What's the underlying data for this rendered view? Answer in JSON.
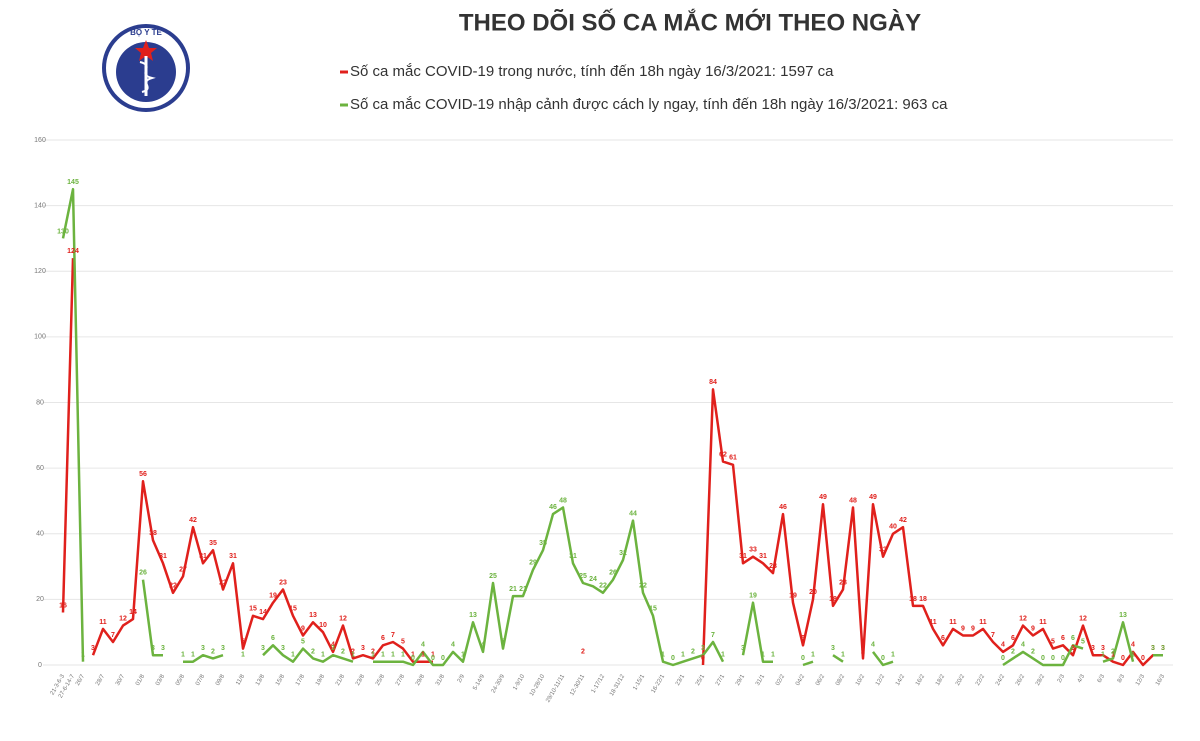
{
  "logo_text": "BỘ Y TẾ",
  "chart_data": {
    "type": "line",
    "title": "THEO DÕI SỐ CA MẮC MỚI THEO NGÀY",
    "ylim": [
      0,
      160
    ],
    "yticks": [
      0,
      20,
      40,
      60,
      80,
      100,
      120,
      140,
      160
    ],
    "grid": true,
    "categories": [
      "21-3-6-3",
      "27-6-14-7",
      "26/7",
      null,
      "28/7",
      null,
      "30/7",
      null,
      "01/8",
      null,
      "03/8",
      null,
      "05/8",
      null,
      "07/8",
      null,
      "09/8",
      null,
      "11/8",
      null,
      "13/8",
      null,
      "15/8",
      null,
      "17/8",
      null,
      "19/8",
      null,
      "21/8",
      null,
      "23/8",
      null,
      "25/8",
      null,
      "27/8",
      null,
      "29/8",
      null,
      "31/8",
      null,
      "2/9",
      null,
      "5-14/9",
      null,
      "24-30/9",
      null,
      "1-9/10",
      null,
      "10-28/10",
      null,
      "29/10-11/11",
      null,
      "12-30/11",
      null,
      "1-17/12",
      null,
      "18-31/12",
      null,
      "1-15/1",
      null,
      "16-22/1",
      null,
      "23/1",
      null,
      "25/1",
      null,
      "27/1",
      null,
      "29/1",
      null,
      "31/1",
      null,
      "02/2",
      null,
      "04/2",
      null,
      "06/2",
      null,
      "08/2",
      null,
      "10/2",
      null,
      "12/2",
      null,
      "14/2",
      null,
      "16/2",
      null,
      "18/2",
      null,
      "20/2",
      null,
      "22/2",
      null,
      "24/2",
      null,
      "26/2",
      null,
      "28/2",
      null,
      "2/3",
      null,
      "4/3",
      null,
      "6/3",
      null,
      "8/3",
      null,
      "12/3",
      null,
      "16/3"
    ],
    "series": [
      {
        "name": "Số ca mắc COVID-19 trong nước, tính đến 18h ngày 16/3/2021: 1597 ca",
        "color": "#e0201c",
        "values": [
          16,
          124,
          null,
          3,
          11,
          7,
          12,
          14,
          56,
          38,
          31,
          22,
          27,
          42,
          31,
          35,
          23,
          31,
          5,
          15,
          14,
          19,
          23,
          15,
          9,
          13,
          10,
          4,
          12,
          2,
          3,
          2,
          6,
          7,
          5,
          1,
          1,
          1,
          null,
          null,
          null,
          null,
          null,
          null,
          null,
          null,
          null,
          null,
          null,
          null,
          null,
          null,
          2,
          null,
          null,
          null,
          null,
          null,
          null,
          null,
          null,
          null,
          null,
          null,
          0,
          84,
          62,
          61,
          31,
          33,
          31,
          28,
          46,
          19,
          6,
          20,
          49,
          18,
          23,
          48,
          2,
          49,
          33,
          40,
          42,
          18,
          18,
          11,
          6,
          11,
          9,
          9,
          11,
          7,
          4,
          6,
          12,
          9,
          11,
          5,
          6,
          3,
          12,
          3,
          3,
          1,
          0,
          4,
          0,
          3,
          3
        ]
      },
      {
        "name": "Số ca mắc COVID-19 nhập cảnh được cách ly ngay, tính đến 18h ngày 16/3/2021: 963 ca",
        "color": "#6cb33f",
        "values": [
          130,
          145,
          1,
          null,
          null,
          null,
          null,
          null,
          26,
          3,
          3,
          null,
          1,
          1,
          3,
          2,
          3,
          null,
          1,
          null,
          3,
          6,
          3,
          1,
          5,
          2,
          1,
          3,
          2,
          1,
          null,
          1,
          1,
          1,
          1,
          0,
          4,
          0,
          0,
          4,
          1,
          13,
          4,
          25,
          5,
          21,
          21,
          29,
          35,
          46,
          48,
          31,
          25,
          24,
          22,
          26,
          32,
          44,
          22,
          15,
          1,
          0,
          1,
          2,
          3,
          7,
          1,
          null,
          3,
          19,
          1,
          1,
          null,
          null,
          0,
          1,
          null,
          3,
          1,
          null,
          null,
          4,
          0,
          1,
          null,
          null,
          null,
          null,
          null,
          null,
          null,
          null,
          null,
          null,
          0,
          2,
          4,
          2,
          0,
          0,
          0,
          6,
          5,
          null,
          1,
          2,
          13,
          1,
          null,
          3,
          3
        ]
      }
    ]
  }
}
